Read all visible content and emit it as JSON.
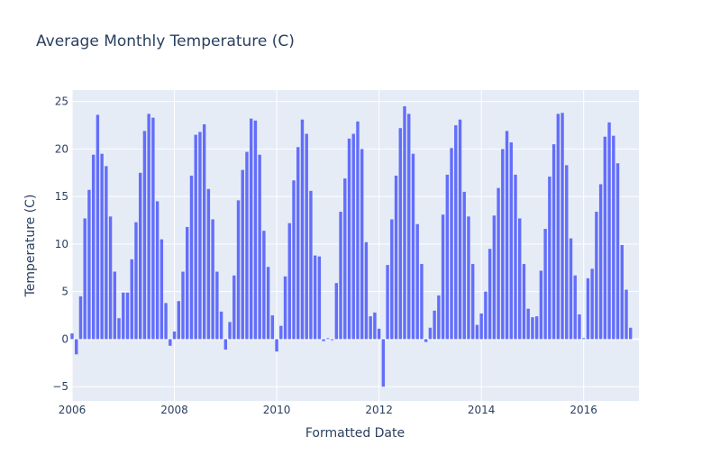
{
  "chart_data": {
    "type": "bar",
    "title": "Average Monthly Temperature (C)",
    "xlabel": "Formatted Date",
    "ylabel": "Temperature (C)",
    "xlim": [
      2006.0,
      2017.08
    ],
    "ylim": [
      -6.5,
      26.2
    ],
    "xticks": [
      2006,
      2008,
      2010,
      2012,
      2014,
      2016
    ],
    "yticks": [
      -5,
      0,
      5,
      10,
      15,
      20,
      25
    ],
    "grid": true,
    "legend": false,
    "colors": {
      "bar": "#636efa",
      "plot_bg": "#e5ecf6",
      "grid": "#ffffff",
      "text": "#2a3f5f"
    },
    "start": "2006-01",
    "values": [
      0.6,
      -1.6,
      4.5,
      12.7,
      15.7,
      19.4,
      23.6,
      19.5,
      18.2,
      12.9,
      7.1,
      2.2,
      4.9,
      4.9,
      8.4,
      12.3,
      17.5,
      21.9,
      23.7,
      23.3,
      14.5,
      10.5,
      3.8,
      -0.7,
      0.8,
      4.0,
      7.1,
      11.8,
      17.2,
      21.5,
      21.8,
      22.6,
      15.8,
      12.6,
      7.1,
      2.9,
      -1.1,
      1.8,
      6.7,
      14.6,
      17.8,
      19.7,
      23.2,
      23.0,
      19.4,
      11.4,
      7.6,
      2.5,
      -1.3,
      1.4,
      6.6,
      12.2,
      16.7,
      20.2,
      23.1,
      21.6,
      15.6,
      8.8,
      8.7,
      -0.2,
      0.1,
      -0.1,
      5.9,
      13.4,
      16.9,
      21.1,
      21.6,
      22.9,
      20.0,
      10.2,
      2.4,
      2.8,
      1.1,
      -5.0,
      7.8,
      12.6,
      17.2,
      22.2,
      24.5,
      23.7,
      19.5,
      12.1,
      7.9,
      -0.3,
      1.2,
      3.0,
      4.6,
      13.1,
      17.3,
      20.1,
      22.5,
      23.1,
      15.5,
      12.9,
      7.9,
      1.5,
      2.7,
      5.0,
      9.5,
      13.0,
      15.9,
      20.0,
      21.9,
      20.7,
      17.3,
      12.7,
      7.9,
      3.2,
      2.3,
      2.4,
      7.2,
      11.6,
      17.1,
      20.5,
      23.7,
      23.8,
      18.3,
      10.6,
      6.7,
      2.6,
      0.1,
      6.4,
      7.4,
      13.4,
      16.3,
      21.3,
      22.8,
      21.4,
      18.5,
      9.9,
      5.2,
      1.2
    ]
  }
}
